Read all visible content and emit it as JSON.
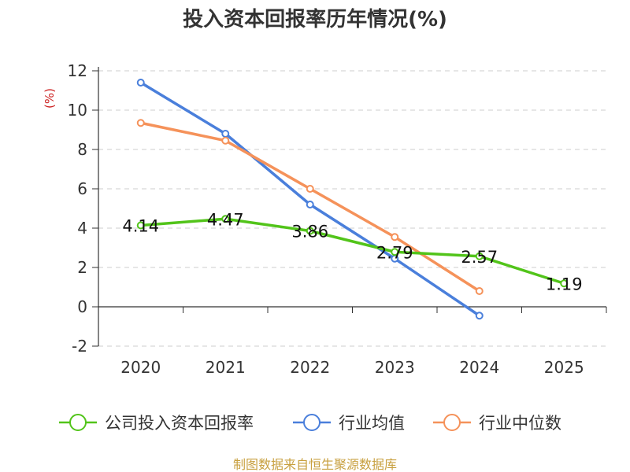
{
  "chart_data": {
    "type": "line",
    "title": "投入资本回报率历年情况(%)",
    "ylabel": "(%)",
    "x": [
      "2020",
      "2021",
      "2022",
      "2023",
      "2024",
      "2025"
    ],
    "ylim": [
      -2,
      12
    ],
    "yticks": [
      "12",
      "10",
      "8",
      "6",
      "4",
      "2",
      "0",
      "-2"
    ],
    "grid": true,
    "legend_position": "bottom",
    "series": [
      {
        "name": "公司投入资本回报率",
        "color": "#52c41a",
        "values": [
          4.14,
          4.47,
          3.86,
          2.79,
          2.57,
          1.19
        ],
        "labels": [
          "4.14",
          "4.47",
          "3.86",
          "2.79",
          "2.57",
          "1.19"
        ]
      },
      {
        "name": "行业均值",
        "color": "#4a7fdb",
        "values": [
          11.4,
          8.8,
          5.2,
          2.45,
          -0.45,
          null
        ]
      },
      {
        "name": "行业中位数",
        "color": "#f5925a",
        "values": [
          9.35,
          8.45,
          6.0,
          3.55,
          0.8,
          null
        ]
      }
    ]
  },
  "source": {
    "text": "制图数据来自恒生聚源数据库",
    "color": "#c8a040"
  },
  "unit_color": "#cc2222"
}
